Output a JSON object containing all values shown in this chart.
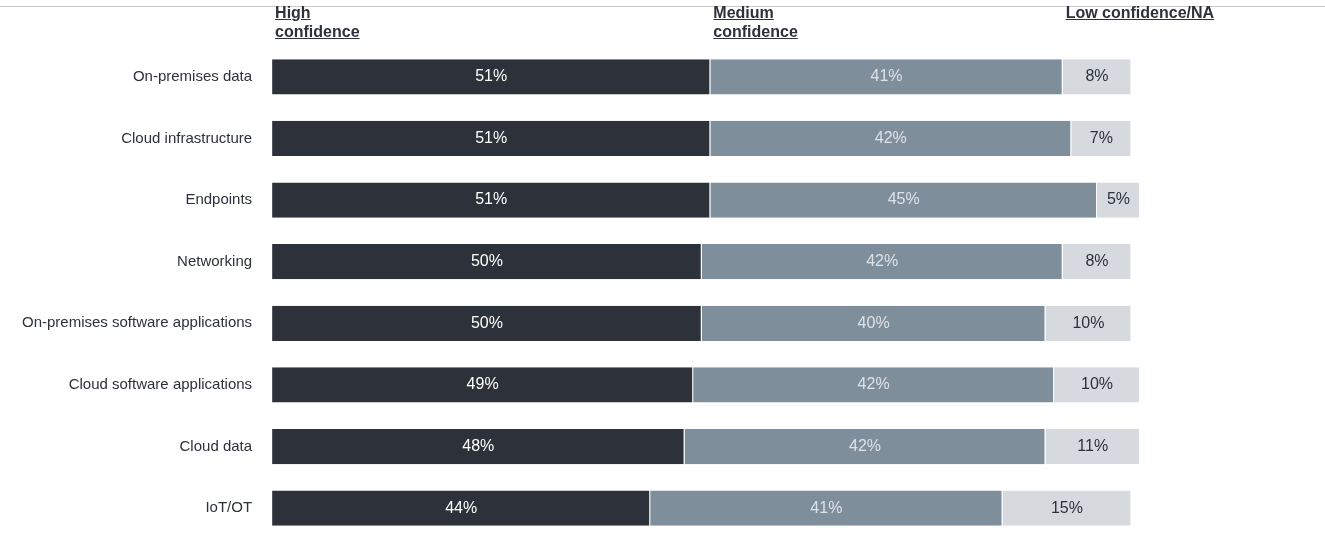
{
  "chart_data": {
    "type": "bar",
    "orientation": "horizontal",
    "stacked": true,
    "legend": "top",
    "categories": [
      "On-premises data",
      "Cloud infrastructure",
      "Endpoints",
      "Networking",
      "On-premises software applications",
      "Cloud software applications",
      "Cloud data",
      "IoT/OT"
    ],
    "series": [
      {
        "name": "High confidence",
        "color": "#2d3139",
        "values": [
          51,
          51,
          51,
          50,
          50,
          49,
          48,
          44
        ],
        "value_labels": [
          "51%",
          "51%",
          "51%",
          "50%",
          "50%",
          "49%",
          "48%",
          "44%"
        ]
      },
      {
        "name": "Medium confidence",
        "color": "#7f8e9b",
        "values": [
          41,
          42,
          45,
          42,
          40,
          42,
          42,
          41
        ],
        "value_labels": [
          "41%",
          "42%",
          "45%",
          "42%",
          "40%",
          "42%",
          "42%",
          "41%"
        ]
      },
      {
        "name": "Low confidence/NA",
        "color": "#d6dadf",
        "values": [
          8,
          7,
          5,
          8,
          10,
          10,
          11,
          15
        ],
        "value_labels": [
          "8%",
          "7%",
          "5%",
          "8%",
          "10%",
          "10%",
          "11%",
          "15%"
        ]
      }
    ]
  }
}
